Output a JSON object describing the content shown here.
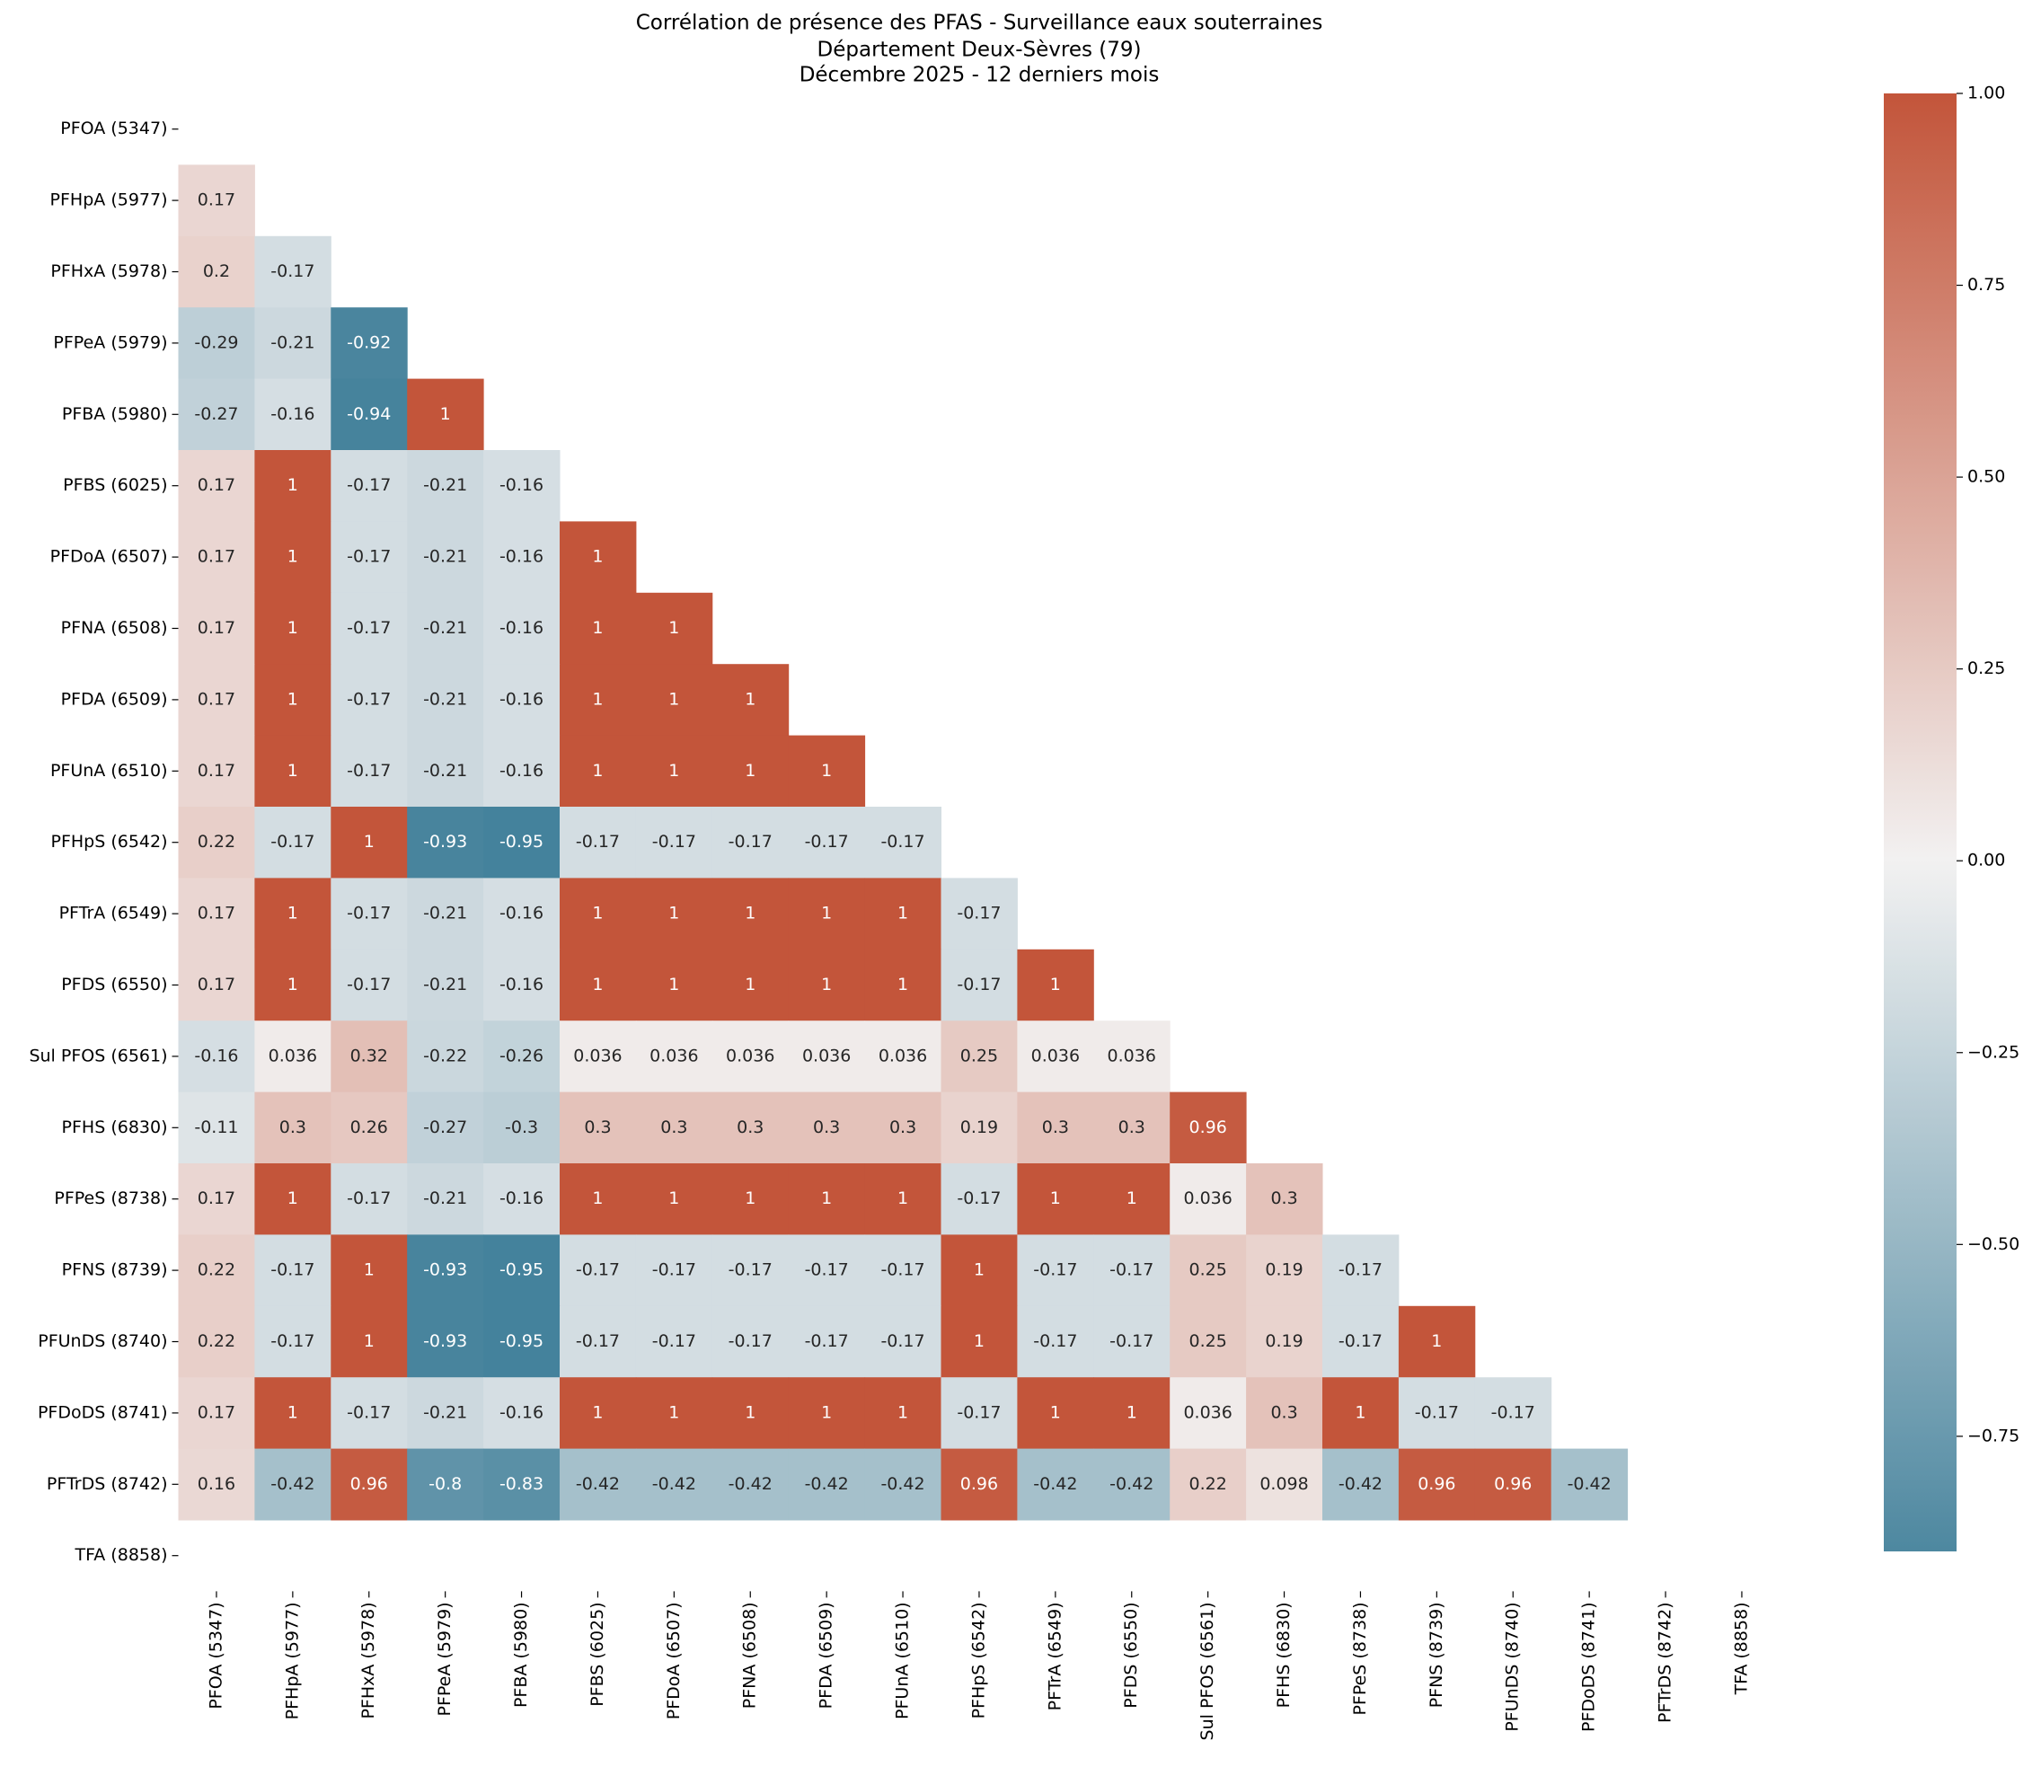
{
  "chart_data": {
    "type": "heatmap",
    "title": [
      "Corrélation de présence des PFAS - Surveillance eaux souterraines",
      "Département Deux-Sèvres (79)",
      "Décembre 2025 - 12 derniers mois"
    ],
    "categories": [
      "PFOA (5347)",
      "PFHpA (5977)",
      "PFHxA (5978)",
      "PFPeA (5979)",
      "PFBA (5980)",
      "PFBS (6025)",
      "PFDoA (6507)",
      "PFNA (6508)",
      "PFDA (6509)",
      "PFUnA (6510)",
      "PFHpS (6542)",
      "PFTrA (6549)",
      "PFDS (6550)",
      "Sul PFOS (6561)",
      "PFHS (6830)",
      "PFPeS (8738)",
      "PFNS (8739)",
      "PFUnDS (8740)",
      "PFDoDS (8741)",
      "PFTrDS (8742)",
      "TFA (8858)"
    ],
    "values": [
      [],
      [
        0.17
      ],
      [
        0.2,
        -0.17
      ],
      [
        -0.29,
        -0.21,
        -0.92
      ],
      [
        -0.27,
        -0.16,
        -0.94,
        1
      ],
      [
        0.17,
        1,
        -0.17,
        -0.21,
        -0.16
      ],
      [
        0.17,
        1,
        -0.17,
        -0.21,
        -0.16,
        1
      ],
      [
        0.17,
        1,
        -0.17,
        -0.21,
        -0.16,
        1,
        1
      ],
      [
        0.17,
        1,
        -0.17,
        -0.21,
        -0.16,
        1,
        1,
        1
      ],
      [
        0.17,
        1,
        -0.17,
        -0.21,
        -0.16,
        1,
        1,
        1,
        1
      ],
      [
        0.22,
        -0.17,
        1,
        -0.93,
        -0.95,
        -0.17,
        -0.17,
        -0.17,
        -0.17,
        -0.17
      ],
      [
        0.17,
        1,
        -0.17,
        -0.21,
        -0.16,
        1,
        1,
        1,
        1,
        1,
        -0.17
      ],
      [
        0.17,
        1,
        -0.17,
        -0.21,
        -0.16,
        1,
        1,
        1,
        1,
        1,
        -0.17,
        1
      ],
      [
        -0.16,
        0.036,
        0.32,
        -0.22,
        -0.26,
        0.036,
        0.036,
        0.036,
        0.036,
        0.036,
        0.25,
        0.036,
        0.036
      ],
      [
        -0.11,
        0.3,
        0.26,
        -0.27,
        -0.3,
        0.3,
        0.3,
        0.3,
        0.3,
        0.3,
        0.19,
        0.3,
        0.3,
        0.96
      ],
      [
        0.17,
        1,
        -0.17,
        -0.21,
        -0.16,
        1,
        1,
        1,
        1,
        1,
        -0.17,
        1,
        1,
        0.036,
        0.3
      ],
      [
        0.22,
        -0.17,
        1,
        -0.93,
        -0.95,
        -0.17,
        -0.17,
        -0.17,
        -0.17,
        -0.17,
        1,
        -0.17,
        -0.17,
        0.25,
        0.19,
        -0.17
      ],
      [
        0.22,
        -0.17,
        1,
        -0.93,
        -0.95,
        -0.17,
        -0.17,
        -0.17,
        -0.17,
        -0.17,
        1,
        -0.17,
        -0.17,
        0.25,
        0.19,
        -0.17,
        1
      ],
      [
        0.17,
        1,
        -0.17,
        -0.21,
        -0.16,
        1,
        1,
        1,
        1,
        1,
        -0.17,
        1,
        1,
        0.036,
        0.3,
        1,
        -0.17,
        -0.17
      ],
      [
        0.16,
        -0.42,
        0.96,
        -0.8,
        -0.83,
        -0.42,
        -0.42,
        -0.42,
        -0.42,
        -0.42,
        0.96,
        -0.42,
        -0.42,
        0.22,
        0.098,
        -0.42,
        0.96,
        0.96,
        -0.42
      ],
      []
    ],
    "colorscale": {
      "low": "#3b7c97",
      "mid": "#f2f1f1",
      "high": "#c3553a"
    },
    "clim": [
      -0.9,
      1
    ],
    "cticks": [
      {
        "value": 1,
        "label": "1.00"
      },
      {
        "value": 0.75,
        "label": "0.75"
      },
      {
        "value": 0.5,
        "label": "0.50"
      },
      {
        "value": 0.25,
        "label": "0.25"
      },
      {
        "value": 0,
        "label": "0.00"
      },
      {
        "value": -0.25,
        "label": "−0.25"
      },
      {
        "value": -0.5,
        "label": "−0.50"
      },
      {
        "value": -0.75,
        "label": "−0.75"
      }
    ]
  }
}
